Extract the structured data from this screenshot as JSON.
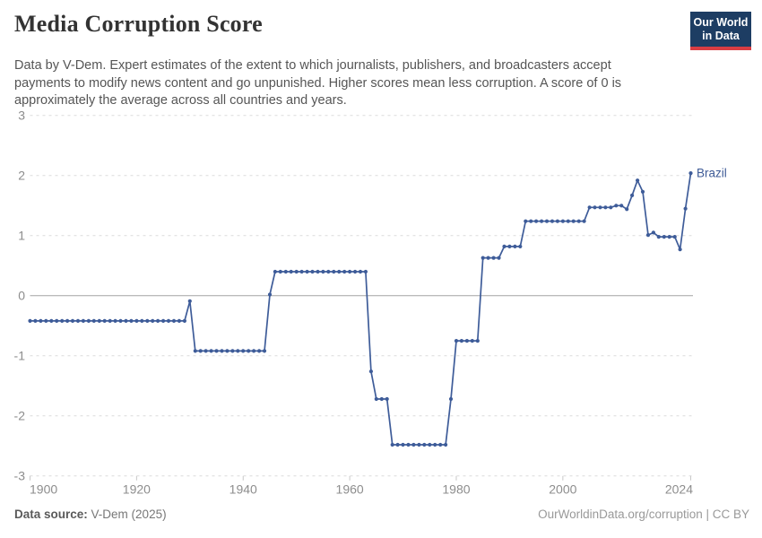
{
  "header": {
    "title": "Media Corruption Score",
    "subtitle": "Data by V-Dem. Expert estimates of the extent to which journalists, publishers, and broadcasters accept payments to modify news content and go unpunished. Higher scores mean less corruption. A score of 0 is approximately the average across all countries and years.",
    "logo": {
      "line1": "Our World",
      "line2": "in Data",
      "bg_color": "#1d3d63",
      "accent_color": "#d93d43"
    }
  },
  "chart_data": {
    "type": "line",
    "title": "Media Corruption Score",
    "xlabel": "",
    "ylabel": "",
    "x_range": [
      1900,
      2024
    ],
    "ylim": [
      -3,
      3
    ],
    "x_ticks": [
      1900,
      1920,
      1940,
      1960,
      1980,
      2000,
      2024
    ],
    "y_ticks": [
      3,
      2,
      1,
      0,
      -1,
      -2,
      -3
    ],
    "grid": "horizontal dashed gridlines, solid gray zero line, dashed baseline at -3",
    "legend_position": "label at end of line",
    "line_color": "#3e5c99",
    "point_color": "#3e5c99",
    "entity_label_color": "#3d5a96",
    "axis_label_color": "#8d8d8d",
    "series": [
      {
        "name": "Brazil",
        "note": "one data point per year 1900-2024; constant-value runs encoded as segments",
        "segments": [
          {
            "from": 1900,
            "to": 1929,
            "value": -0.42
          },
          {
            "from": 1930,
            "to": 1930,
            "value": -0.09
          },
          {
            "from": 1931,
            "to": 1944,
            "value": -0.92
          },
          {
            "from": 1945,
            "to": 1945,
            "value": 0.02
          },
          {
            "from": 1946,
            "to": 1963,
            "value": 0.4
          },
          {
            "from": 1964,
            "to": 1964,
            "value": -1.26
          },
          {
            "from": 1965,
            "to": 1967,
            "value": -1.72
          },
          {
            "from": 1968,
            "to": 1978,
            "value": -2.48
          },
          {
            "from": 1979,
            "to": 1979,
            "value": -1.72
          },
          {
            "from": 1980,
            "to": 1984,
            "value": -0.75
          },
          {
            "from": 1985,
            "to": 1988,
            "value": 0.63
          },
          {
            "from": 1989,
            "to": 1992,
            "value": 0.82
          },
          {
            "from": 1993,
            "to": 2004,
            "value": 1.24
          },
          {
            "from": 2005,
            "to": 2009,
            "value": 1.47
          },
          {
            "from": 2010,
            "to": 2011,
            "value": 1.5
          },
          {
            "from": 2012,
            "to": 2012,
            "value": 1.44
          },
          {
            "from": 2013,
            "to": 2013,
            "value": 1.67
          },
          {
            "from": 2014,
            "to": 2014,
            "value": 1.92
          },
          {
            "from": 2015,
            "to": 2015,
            "value": 1.73
          },
          {
            "from": 2016,
            "to": 2016,
            "value": 1.01
          },
          {
            "from": 2017,
            "to": 2017,
            "value": 1.05
          },
          {
            "from": 2018,
            "to": 2021,
            "value": 0.98
          },
          {
            "from": 2022,
            "to": 2022,
            "value": 0.77
          },
          {
            "from": 2023,
            "to": 2023,
            "value": 1.45
          },
          {
            "from": 2024,
            "to": 2024,
            "value": 2.04
          }
        ]
      }
    ]
  },
  "footer": {
    "source_label": "Data source:",
    "source_value": "V-Dem (2025)",
    "link_text": "OurWorldinData.org/corruption | CC BY"
  }
}
